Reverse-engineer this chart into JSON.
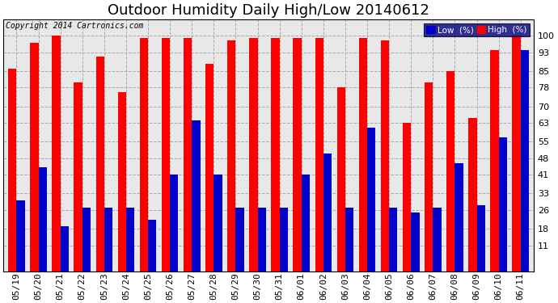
{
  "title": "Outdoor Humidity Daily High/Low 20140612",
  "copyright": "Copyright 2014 Cartronics.com",
  "dates": [
    "05/19",
    "05/20",
    "05/21",
    "05/22",
    "05/23",
    "05/24",
    "05/25",
    "05/26",
    "05/27",
    "05/28",
    "05/29",
    "05/30",
    "05/31",
    "06/01",
    "06/02",
    "06/03",
    "06/04",
    "06/05",
    "06/06",
    "06/07",
    "06/08",
    "06/09",
    "06/10",
    "06/11"
  ],
  "high": [
    86,
    97,
    100,
    80,
    91,
    76,
    99,
    99,
    99,
    88,
    98,
    99,
    99,
    99,
    99,
    78,
    99,
    98,
    63,
    80,
    85,
    65,
    94,
    100
  ],
  "low": [
    30,
    44,
    19,
    27,
    27,
    27,
    22,
    41,
    64,
    41,
    27,
    27,
    27,
    41,
    50,
    27,
    61,
    27,
    25,
    27,
    46,
    28,
    57,
    94
  ],
  "high_color": "#ff0000",
  "low_color": "#0000cc",
  "bg_color": "#ffffff",
  "plot_bg_color": "#e8e8e8",
  "grid_color": "#aaaaaa",
  "yticks": [
    11,
    18,
    26,
    33,
    41,
    48,
    55,
    63,
    70,
    78,
    85,
    93,
    100
  ],
  "ylim": [
    0,
    107
  ],
  "legend_low_label": "Low  (%)",
  "legend_high_label": "High  (%)",
  "title_fontsize": 13,
  "tick_fontsize": 8,
  "bar_width": 0.38
}
